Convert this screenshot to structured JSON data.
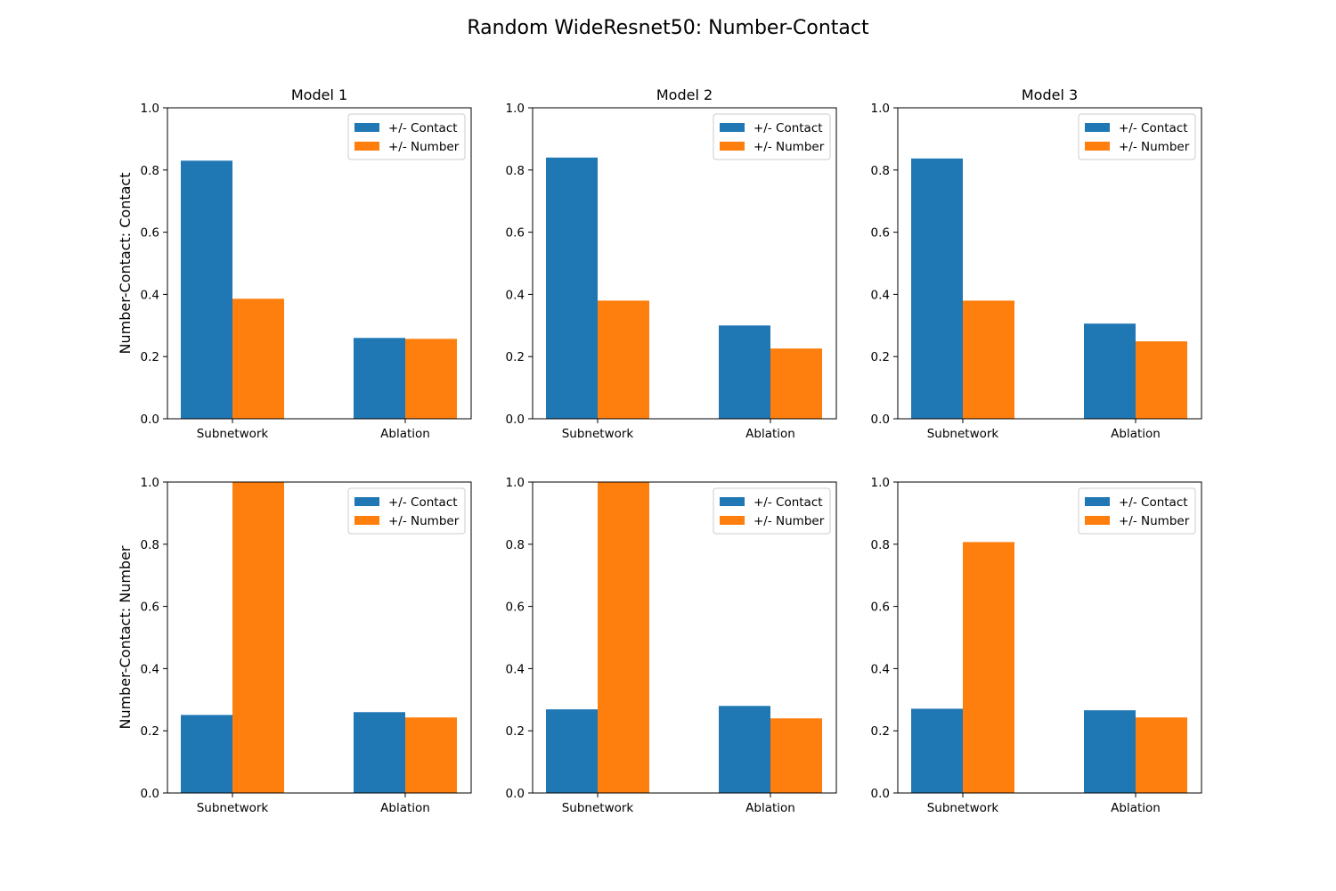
{
  "figure": {
    "suptitle": "Random WideResnet50: Number-Contact"
  },
  "colors": {
    "contact": "#1f77b4",
    "number": "#ff7f0e"
  },
  "chart_data": [
    {
      "type": "bar",
      "title": "Model 1",
      "ylabel": "Number-Contact: Contact",
      "categories": [
        "Subnetwork",
        "Ablation"
      ],
      "ylim": [
        0,
        1
      ],
      "yticks": [
        "0.0",
        "0.2",
        "0.4",
        "0.6",
        "0.8",
        "1.0"
      ],
      "legend": "top-right",
      "series": [
        {
          "name": "+/- Contact",
          "values": [
            0.83,
            0.26
          ]
        },
        {
          "name": "+/- Number",
          "values": [
            0.386,
            0.257
          ]
        }
      ]
    },
    {
      "type": "bar",
      "title": "Model 2",
      "ylabel": "",
      "categories": [
        "Subnetwork",
        "Ablation"
      ],
      "ylim": [
        0,
        1
      ],
      "yticks": [
        "0.0",
        "0.2",
        "0.4",
        "0.6",
        "0.8",
        "1.0"
      ],
      "legend": "top-right",
      "series": [
        {
          "name": "+/- Contact",
          "values": [
            0.84,
            0.3
          ]
        },
        {
          "name": "+/- Number",
          "values": [
            0.38,
            0.226
          ]
        }
      ]
    },
    {
      "type": "bar",
      "title": "Model 3",
      "ylabel": "",
      "categories": [
        "Subnetwork",
        "Ablation"
      ],
      "ylim": [
        0,
        1
      ],
      "yticks": [
        "0.0",
        "0.2",
        "0.4",
        "0.6",
        "0.8",
        "1.0"
      ],
      "legend": "top-right",
      "series": [
        {
          "name": "+/- Contact",
          "values": [
            0.837,
            0.306
          ]
        },
        {
          "name": "+/- Number",
          "values": [
            0.38,
            0.249
          ]
        }
      ]
    },
    {
      "type": "bar",
      "title": "",
      "ylabel": "Number-Contact: Number",
      "categories": [
        "Subnetwork",
        "Ablation"
      ],
      "ylim": [
        0,
        1
      ],
      "yticks": [
        "0.0",
        "0.2",
        "0.4",
        "0.6",
        "0.8",
        "1.0"
      ],
      "legend": "top-right",
      "series": [
        {
          "name": "+/- Contact",
          "values": [
            0.251,
            0.26
          ]
        },
        {
          "name": "+/- Number",
          "values": [
            1.0,
            0.243
          ]
        }
      ]
    },
    {
      "type": "bar",
      "title": "",
      "ylabel": "",
      "categories": [
        "Subnetwork",
        "Ablation"
      ],
      "ylim": [
        0,
        1
      ],
      "yticks": [
        "0.0",
        "0.2",
        "0.4",
        "0.6",
        "0.8",
        "1.0"
      ],
      "legend": "top-right",
      "series": [
        {
          "name": "+/- Contact",
          "values": [
            0.269,
            0.28
          ]
        },
        {
          "name": "+/- Number",
          "values": [
            1.0,
            0.24
          ]
        }
      ]
    },
    {
      "type": "bar",
      "title": "",
      "ylabel": "",
      "categories": [
        "Subnetwork",
        "Ablation"
      ],
      "ylim": [
        0,
        1
      ],
      "yticks": [
        "0.0",
        "0.2",
        "0.4",
        "0.6",
        "0.8",
        "1.0"
      ],
      "legend": "top-right",
      "series": [
        {
          "name": "+/- Contact",
          "values": [
            0.271,
            0.266
          ]
        },
        {
          "name": "+/- Number",
          "values": [
            0.807,
            0.243
          ]
        }
      ]
    }
  ]
}
